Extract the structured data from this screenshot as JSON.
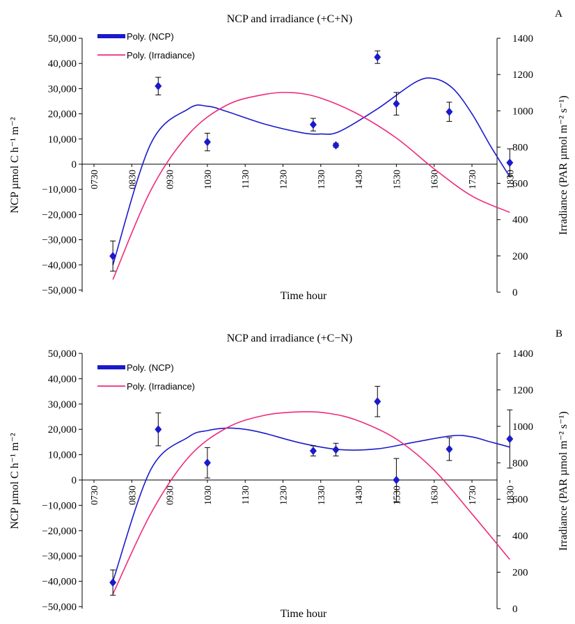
{
  "chart_data": [
    {
      "type": "scatter",
      "panel_label": "A",
      "title": "NCP and irradiance (+C+N)",
      "xlabel": "Time hour",
      "ylabel": "NCP µmol C h⁻¹ m⁻²",
      "y2label": "Irradiance (PAR µmol m⁻² s⁻¹)",
      "x_ticks": [
        "0730",
        "0830",
        "0930",
        "1030",
        "1130",
        "1230",
        "1330",
        "1430",
        "1530",
        "1630",
        "1730",
        "1830"
      ],
      "y_ticks": [
        "50,000",
        "40,000",
        "30,000",
        "20,000",
        "10,000",
        "0",
        "−10,000",
        "−20,000",
        "−30,000",
        "−40,000",
        "−50,000"
      ],
      "y2_ticks": [
        "1400",
        "1200",
        "1000",
        "800",
        "600",
        "400",
        "200",
        "0"
      ],
      "ylim": [
        -50000,
        50000
      ],
      "y2lim": [
        0,
        1400
      ],
      "legend": [
        "Poly. (NCP)",
        "Poly. (Irradiance)"
      ],
      "legend_position": "top-left",
      "series": [
        {
          "name": "NCP",
          "kind": "points-with-error-bars",
          "color": "#1a1acc",
          "x": [
            8.0,
            9.2,
            10.5,
            13.3,
            13.9,
            15.0,
            15.5,
            16.9,
            18.5
          ],
          "y": [
            -36500,
            31000,
            8800,
            15700,
            7500,
            42500,
            24000,
            20800,
            600
          ],
          "err": [
            6000,
            3500,
            3500,
            2500,
            800,
            2500,
            4500,
            3800,
            5500
          ]
        },
        {
          "name": "Poly. (NCP)",
          "kind": "trendline",
          "color": "#1a1acc",
          "x": [
            8.0,
            9.0,
            10.0,
            10.5,
            11.0,
            12.0,
            13.0,
            13.5,
            14.0,
            15.0,
            16.0,
            16.5,
            17.0,
            17.5,
            18.0,
            18.5
          ],
          "y": [
            -40000,
            8000,
            22000,
            23000,
            21000,
            16000,
            12500,
            12000,
            13000,
            22000,
            32500,
            34000,
            30000,
            20000,
            7000,
            -5000
          ]
        },
        {
          "name": "Poly. (Irradiance)",
          "kind": "trendline",
          "axis": "right",
          "color": "#ee2a7b",
          "x": [
            8.0,
            9.0,
            10.0,
            11.0,
            12.0,
            12.75,
            13.5,
            14.5,
            15.5,
            16.5,
            17.5,
            18.5
          ],
          "y": [
            70,
            560,
            870,
            1030,
            1090,
            1100,
            1070,
            980,
            850,
            680,
            530,
            440
          ]
        }
      ]
    },
    {
      "type": "scatter",
      "panel_label": "B",
      "title": "NCP and irradiance (+C−N)",
      "xlabel": "Time hour",
      "ylabel": "NCP µmol C h⁻¹ m⁻²",
      "y2label": "Irradiance (PAR µmol m⁻² s⁻¹)",
      "x_ticks": [
        "0730",
        "0830",
        "0930",
        "1030",
        "1130",
        "1230",
        "1330",
        "1430",
        "1530",
        "1630",
        "1730",
        "1830"
      ],
      "y_ticks": [
        "50,000",
        "40,000",
        "30,000",
        "20,000",
        "10,000",
        "0",
        "−10,000",
        "−20,000",
        "−30,000",
        "−40,000",
        "−50,000"
      ],
      "y2_ticks": [
        "1400",
        "1200",
        "1000",
        "800",
        "600",
        "400",
        "200",
        "0"
      ],
      "ylim": [
        -50000,
        50000
      ],
      "y2lim": [
        0,
        1400
      ],
      "legend": [
        "Poly. (NCP)",
        "Poly. (Irradiance)"
      ],
      "legend_position": "top-left",
      "series": [
        {
          "name": "NCP",
          "kind": "points-with-error-bars",
          "color": "#1a1acc",
          "x": [
            8.0,
            9.2,
            10.5,
            13.3,
            13.9,
            15.0,
            15.5,
            16.9,
            18.5
          ],
          "y": [
            -40500,
            20000,
            6800,
            11500,
            12000,
            31000,
            0,
            12200,
            16200
          ],
          "err": [
            5000,
            6500,
            6000,
            2000,
            2500,
            6000,
            8500,
            4500,
            11500
          ]
        },
        {
          "name": "Poly. (NCP)",
          "kind": "trendline",
          "color": "#1a1acc",
          "x": [
            8.0,
            9.0,
            10.0,
            10.5,
            11.0,
            11.5,
            12.0,
            13.0,
            14.0,
            15.0,
            16.0,
            17.0,
            17.5,
            18.0,
            18.5
          ],
          "y": [
            -40000,
            4000,
            17000,
            19500,
            20500,
            20000,
            18500,
            14500,
            12000,
            12300,
            15000,
            17500,
            17000,
            15000,
            13000
          ]
        },
        {
          "name": "Poly. (Irradiance)",
          "kind": "trendline",
          "axis": "right",
          "color": "#ee2a7b",
          "x": [
            8.0,
            9.0,
            10.0,
            11.0,
            12.0,
            13.0,
            13.75,
            14.5,
            15.5,
            16.5,
            17.5,
            18.5
          ],
          "y": [
            80,
            520,
            830,
            990,
            1060,
            1080,
            1070,
            1030,
            930,
            760,
            520,
            270
          ]
        }
      ]
    }
  ]
}
